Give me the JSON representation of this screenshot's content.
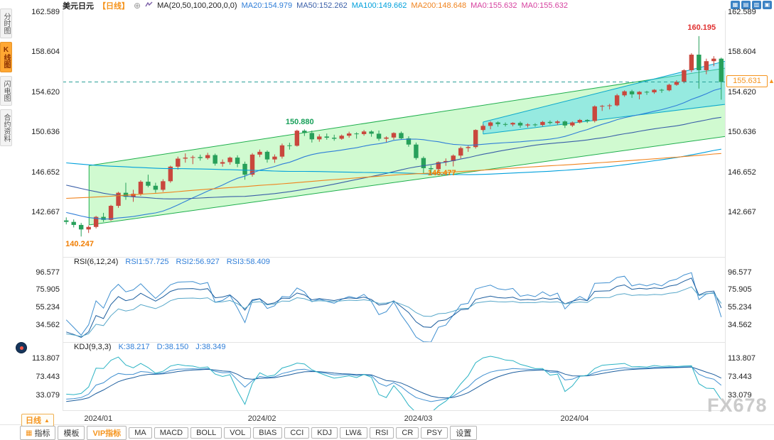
{
  "header": {
    "symbol": "美元日元",
    "period_tag": "【日线】",
    "add_icon": "⊕",
    "ma_label": "MA(20,50,100,200,0,0)",
    "ma_values": [
      {
        "label": "MA20:154.979",
        "color": "#2f7ed8"
      },
      {
        "label": "MA50:152.262",
        "color": "#3a5fa8"
      },
      {
        "label": "MA100:149.662",
        "color": "#00a0dc"
      },
      {
        "label": "MA200:148.648",
        "color": "#f0831e"
      },
      {
        "label": "MA0:155.632",
        "color": "#d6419f"
      },
      {
        "label": "MA0:155.632",
        "color": "#d6419f"
      }
    ]
  },
  "top_right_icons": [
    {
      "key": "layout-grid",
      "glyph": "▦"
    },
    {
      "key": "kline-style",
      "glyph": "▤"
    },
    {
      "key": "chart-type",
      "glyph": "▥"
    },
    {
      "key": "fullscreen",
      "glyph": "▣"
    }
  ],
  "sidebar": {
    "items": [
      {
        "key": "time-share",
        "label": "分时图",
        "active": false
      },
      {
        "key": "kline",
        "label": "K线图",
        "active": true
      },
      {
        "key": "lightning",
        "label": "闪电图",
        "active": false
      },
      {
        "key": "contract-info",
        "label": "合约资料",
        "active": false
      }
    ]
  },
  "panels": {
    "rsi": {
      "label": "RSI(6,12,24)",
      "values": [
        {
          "label": "RSI1:57.725",
          "color": "#2f7ed8"
        },
        {
          "label": "RSI2:56.927",
          "color": "#2f7ed8"
        },
        {
          "label": "RSI3:58.409",
          "color": "#2f7ed8"
        }
      ]
    },
    "kdj": {
      "label": "KDJ(9,3,3)",
      "values": [
        {
          "label": "K:38.217",
          "color": "#2f7ed8"
        },
        {
          "label": "D:38.150",
          "color": "#2f7ed8"
        },
        {
          "label": "J:38.349",
          "color": "#2f7ed8"
        }
      ]
    }
  },
  "bottom": {
    "period_label": "日线",
    "period_arrow": "▲",
    "toolbar": [
      {
        "key": "indicator",
        "label": "指标",
        "icon": "▦"
      },
      {
        "key": "template",
        "label": "模板"
      },
      {
        "key": "vip-indicator",
        "label": "VIP指标",
        "accent": true
      },
      {
        "key": "ma",
        "label": "MA"
      },
      {
        "key": "macd",
        "label": "MACD"
      },
      {
        "key": "boll",
        "label": "BOLL"
      },
      {
        "key": "vol",
        "label": "VOL"
      },
      {
        "key": "bias",
        "label": "BIAS"
      },
      {
        "key": "cci",
        "label": "CCI"
      },
      {
        "key": "kdj",
        "label": "KDJ"
      },
      {
        "key": "lw",
        "label": "LW&"
      },
      {
        "key": "rsi",
        "label": "RSI"
      },
      {
        "key": "cr",
        "label": "CR"
      },
      {
        "key": "psy",
        "label": "PSY"
      },
      {
        "key": "settings",
        "label": "设置"
      }
    ]
  },
  "watermark": "FX678",
  "chart_data": {
    "type": "candlestick",
    "symbol": "美元日元",
    "period": "日线",
    "y_axis": [
      "162.589",
      "158.604",
      "154.620",
      "150.636",
      "146.652",
      "142.667"
    ],
    "rsi_y_axis": [
      "96.577",
      "75.905",
      "55.234",
      "34.562"
    ],
    "kdj_y_axis": [
      "113.807",
      "73.443",
      "33.079"
    ],
    "x_labels": [
      "2024/01",
      "2024/02",
      "2024/03",
      "2024/04"
    ],
    "month_start_indices": [
      0,
      22,
      43,
      64
    ],
    "last_price": "155.631",
    "ma_windows": [
      20,
      50,
      100,
      200
    ],
    "rsi_windows": [
      6,
      12,
      24
    ],
    "annotations": {
      "high": {
        "text": "160.195",
        "idx": 85,
        "color": "#e03131"
      },
      "peak": {
        "text": "150.880",
        "idx": 31,
        "color": "#18a05a"
      },
      "dip": {
        "text": "146.477",
        "idx": 48,
        "color": "#f07d00"
      },
      "low": {
        "text": "140.247",
        "idx": 2,
        "color": "#f07d00"
      }
    },
    "channels": [
      {
        "x1": 0.04,
        "x2": 1.0,
        "top1": 147.3,
        "top2": 157.0,
        "bot1": 141.4,
        "bot2": 150.2,
        "fill": "rgba(120,240,120,0.35)",
        "stroke": "#1fae4d"
      },
      {
        "x1": 0.635,
        "x2": 1.0,
        "top1": 151.65,
        "top2": 157.7,
        "bot1": 150.45,
        "bot2": 153.4,
        "fill": "rgba(80,215,245,0.45)",
        "stroke": "#0aa8cc"
      }
    ],
    "colors": {
      "up": "#c9473d",
      "down": "#27a05a",
      "ma": [
        "#2f7ed8",
        "#3a5fa8",
        "#00a0dc",
        "#f0831e"
      ],
      "rsi": [
        "#3f8fd0",
        "#1d5e9e",
        "#57a7c9"
      ],
      "kdj": [
        "#3f8fd0",
        "#1d5e9e",
        "#2bb3c4"
      ],
      "close_line": "#2aa198",
      "accent": "#f5941d"
    },
    "ohlc": [
      [
        141.85,
        142.15,
        141.45,
        141.7
      ],
      [
        141.7,
        141.95,
        141.15,
        141.4
      ],
      [
        141.4,
        141.6,
        140.247,
        140.95
      ],
      [
        140.95,
        141.35,
        140.6,
        141.2
      ],
      [
        141.2,
        142.3,
        141.05,
        142.2
      ],
      [
        142.2,
        142.6,
        141.7,
        141.9
      ],
      [
        141.9,
        143.4,
        141.8,
        143.3
      ],
      [
        143.3,
        144.7,
        143.1,
        144.6
      ],
      [
        144.6,
        145.6,
        143.9,
        144.2
      ],
      [
        144.2,
        144.9,
        143.7,
        144.5
      ],
      [
        144.5,
        145.85,
        144.3,
        145.7
      ],
      [
        145.7,
        146.4,
        145.15,
        145.3
      ],
      [
        145.3,
        145.6,
        144.6,
        144.9
      ],
      [
        144.9,
        145.95,
        144.7,
        145.75
      ],
      [
        145.75,
        147.3,
        145.6,
        147.2
      ],
      [
        147.2,
        148.2,
        146.9,
        148.0
      ],
      [
        148.0,
        148.52,
        147.6,
        148.1
      ],
      [
        148.1,
        148.32,
        147.45,
        148.15
      ],
      [
        148.15,
        148.4,
        147.8,
        148.05
      ],
      [
        148.05,
        148.58,
        147.9,
        148.35
      ],
      [
        148.35,
        148.5,
        147.3,
        147.5
      ],
      [
        147.5,
        147.92,
        147.2,
        147.65
      ],
      [
        147.65,
        148.2,
        147.4,
        148.1
      ],
      [
        148.1,
        148.33,
        147.15,
        147.48
      ],
      [
        147.48,
        147.7,
        145.9,
        146.4
      ],
      [
        146.4,
        148.55,
        146.2,
        148.4
      ],
      [
        148.4,
        148.9,
        148.15,
        148.68
      ],
      [
        148.68,
        148.82,
        147.6,
        147.92
      ],
      [
        147.92,
        148.42,
        147.58,
        148.2
      ],
      [
        148.2,
        149.5,
        148.0,
        149.32
      ],
      [
        149.32,
        149.58,
        148.9,
        149.28
      ],
      [
        149.28,
        150.88,
        149.2,
        150.78
      ],
      [
        150.78,
        150.92,
        150.25,
        150.55
      ],
      [
        150.55,
        150.8,
        149.6,
        149.92
      ],
      [
        149.92,
        150.42,
        149.68,
        150.2
      ],
      [
        150.2,
        150.5,
        149.88,
        150.08
      ],
      [
        150.08,
        150.38,
        149.78,
        149.98
      ],
      [
        149.98,
        150.4,
        149.88,
        150.28
      ],
      [
        150.28,
        150.68,
        150.08,
        150.5
      ],
      [
        150.5,
        150.62,
        149.98,
        150.44
      ],
      [
        150.44,
        150.85,
        150.28,
        150.7
      ],
      [
        150.7,
        150.82,
        150.18,
        150.48
      ],
      [
        150.48,
        150.8,
        149.78,
        149.98
      ],
      [
        149.98,
        150.22,
        149.6,
        150.1
      ],
      [
        150.1,
        150.62,
        149.88,
        150.55
      ],
      [
        150.55,
        150.7,
        149.88,
        150.02
      ],
      [
        150.02,
        150.22,
        149.18,
        149.4
      ],
      [
        149.4,
        149.6,
        147.88,
        148.06
      ],
      [
        148.06,
        148.22,
        146.477,
        147.05
      ],
      [
        147.05,
        147.32,
        146.52,
        146.95
      ],
      [
        146.95,
        147.72,
        146.6,
        147.65
      ],
      [
        147.65,
        148.02,
        147.28,
        147.76
      ],
      [
        147.76,
        148.42,
        147.22,
        148.3
      ],
      [
        148.3,
        149.2,
        148.02,
        149.05
      ],
      [
        149.05,
        149.32,
        148.68,
        149.15
      ],
      [
        149.15,
        150.92,
        149.0,
        150.85
      ],
      [
        150.85,
        151.42,
        150.7,
        151.26
      ],
      [
        151.26,
        151.72,
        150.92,
        151.6
      ],
      [
        151.6,
        151.7,
        151.18,
        151.44
      ],
      [
        151.44,
        151.6,
        151.2,
        151.4
      ],
      [
        151.4,
        151.62,
        151.22,
        151.56
      ],
      [
        151.56,
        151.7,
        151.08,
        151.3
      ],
      [
        151.3,
        151.52,
        151.1,
        151.4
      ],
      [
        151.4,
        151.52,
        151.18,
        151.35
      ],
      [
        151.35,
        151.75,
        151.22,
        151.65
      ],
      [
        151.65,
        151.8,
        151.4,
        151.55
      ],
      [
        151.55,
        151.82,
        151.38,
        151.7
      ],
      [
        151.7,
        151.8,
        151.05,
        151.3
      ],
      [
        151.3,
        151.7,
        151.15,
        151.6
      ],
      [
        151.6,
        151.95,
        151.5,
        151.85
      ],
      [
        151.85,
        151.92,
        151.55,
        151.75
      ],
      [
        151.75,
        153.3,
        151.6,
        153.2
      ],
      [
        153.2,
        153.35,
        152.75,
        153.25
      ],
      [
        153.25,
        153.45,
        152.9,
        153.3
      ],
      [
        153.3,
        154.45,
        153.2,
        154.3
      ],
      [
        154.3,
        154.8,
        154.15,
        154.7
      ],
      [
        154.7,
        154.85,
        154.05,
        154.4
      ],
      [
        154.4,
        154.72,
        153.9,
        154.65
      ],
      [
        154.65,
        154.75,
        154.35,
        154.6
      ],
      [
        154.6,
        154.92,
        154.45,
        154.85
      ],
      [
        154.85,
        154.95,
        154.55,
        154.8
      ],
      [
        154.8,
        155.45,
        154.7,
        155.35
      ],
      [
        155.35,
        155.8,
        155.25,
        155.65
      ],
      [
        155.65,
        156.9,
        155.5,
        156.8
      ],
      [
        156.8,
        158.5,
        156.6,
        158.35
      ],
      [
        158.35,
        160.195,
        154.97,
        156.8
      ],
      [
        156.8,
        157.95,
        156.4,
        157.7
      ],
      [
        157.7,
        158.2,
        157.2,
        157.95
      ],
      [
        157.95,
        158.05,
        153.87,
        155.631
      ]
    ]
  }
}
